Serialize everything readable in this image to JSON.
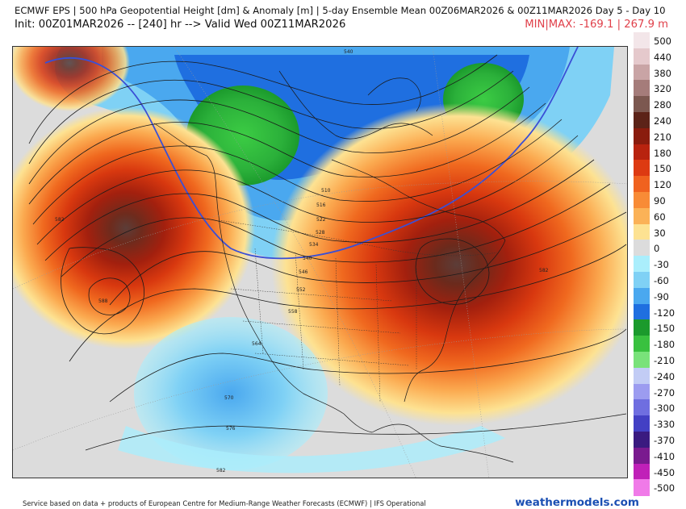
{
  "header": {
    "title": "ECMWF EPS | 500 hPa Geopotential Height [dm] & Anomaly [m] | 5-day Ensemble Mean 00Z06MAR2026 & 00Z11MAR2026  Day 5 - Day 10",
    "subtitle": "Init: 00Z01MAR2026 -- [240] hr --> Valid Wed 00Z11MAR2026",
    "minmax": "MIN|MAX: -169.1 | 267.9 m"
  },
  "colorbar": [
    {
      "label": "500",
      "color": "#f3e6e9"
    },
    {
      "label": "440",
      "color": "#e5c9cc"
    },
    {
      "label": "380",
      "color": "#c9a4a5"
    },
    {
      "label": "320",
      "color": "#a57c7a"
    },
    {
      "label": "280",
      "color": "#7c5850"
    },
    {
      "label": "240",
      "color": "#5c2318"
    },
    {
      "label": "210",
      "color": "#8a1c0e"
    },
    {
      "label": "180",
      "color": "#b8230f"
    },
    {
      "label": "150",
      "color": "#dd3a12"
    },
    {
      "label": "120",
      "color": "#f0621f"
    },
    {
      "label": "90",
      "color": "#f88b36"
    },
    {
      "label": "60",
      "color": "#fbb257"
    },
    {
      "label": "30",
      "color": "#fde292"
    },
    {
      "label": "0",
      "color": "#dcdcdc"
    },
    {
      "label": "-30",
      "color": "#aaeefc"
    },
    {
      "label": "-60",
      "color": "#7fd1f5"
    },
    {
      "label": "-90",
      "color": "#4aa8ef"
    },
    {
      "label": "-120",
      "color": "#1f6fe0"
    },
    {
      "label": "-150",
      "color": "#1b9a2c"
    },
    {
      "label": "-180",
      "color": "#39c13f"
    },
    {
      "label": "-210",
      "color": "#79e27a"
    },
    {
      "label": "-240",
      "color": "#c2ccf5"
    },
    {
      "label": "-270",
      "color": "#9c9cf0"
    },
    {
      "label": "-300",
      "color": "#6f6ee0"
    },
    {
      "label": "-330",
      "color": "#4340c4"
    },
    {
      "label": "-370",
      "color": "#3a1a80"
    },
    {
      "label": "-410",
      "color": "#7a1a8f"
    },
    {
      "label": "-450",
      "color": "#c020b8"
    },
    {
      "label": "-500",
      "color": "#f07ae8"
    }
  ],
  "contour_labels": [
    "582",
    "588",
    "510",
    "516",
    "522",
    "528",
    "534",
    "540",
    "546",
    "552",
    "558",
    "564",
    "570",
    "576",
    "582",
    "582",
    "540"
  ],
  "footer": {
    "credit": "Service based on data + products of European Centre for Medium-Range Weather Forecasts (ECMWF) | IFS Operational",
    "brand": "weathermodels.com"
  }
}
